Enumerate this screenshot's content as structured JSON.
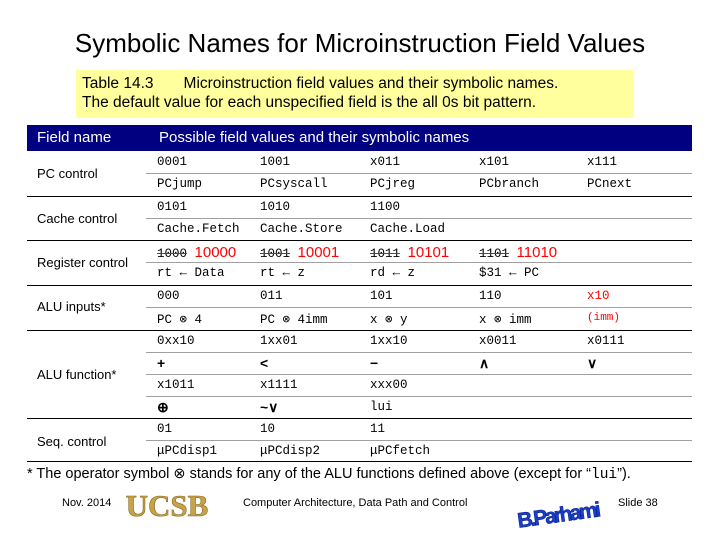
{
  "title": "Symbolic Names for Microinstruction Field Values",
  "caption": {
    "line1_a": "Table 14.3",
    "line1_b": "Microinstruction field values and their symbolic names.",
    "line2": "The default value for each unspecified field is the all 0s bit pattern."
  },
  "header": {
    "field_name": "Field name",
    "possible": "Possible field values and their symbolic names"
  },
  "rows": {
    "pc_control": {
      "label": "PC control",
      "r1": [
        "0001",
        "1001",
        "x011",
        "x101",
        "x111"
      ],
      "r2": [
        "PCjump",
        "PCsyscall",
        "PCjreg",
        "PCbranch",
        "PCnext"
      ]
    },
    "cache_control": {
      "label": "Cache control",
      "r1": [
        "0101",
        "1010",
        "1100"
      ],
      "r2": [
        "Cache.Fetch",
        "Cache.Store",
        "Cache.Load"
      ]
    },
    "register_control": {
      "label": "Register control",
      "r1_old": [
        "1000",
        "1001",
        "1011",
        "1101"
      ],
      "r1_new": [
        "10000",
        "10001",
        "10101",
        "11010"
      ],
      "r2": [
        "rt ← Data",
        "rt ← z",
        "rd ← z",
        "$31 ← PC"
      ]
    },
    "alu_inputs": {
      "label": "ALU inputs*",
      "r1": [
        "000",
        "011",
        "101",
        "110",
        "x10"
      ],
      "r2": [
        "PC ⊗ 4",
        "PC ⊗ 4imm",
        "x ⊗ y",
        "x ⊗ imm",
        "(imm)"
      ]
    },
    "alu_function": {
      "label": "ALU function*",
      "r1": [
        "0xx10",
        "1xx01",
        "1xx10",
        "x0011",
        "x0111"
      ],
      "r2": [
        "+",
        "<",
        "−",
        "∧",
        "∨"
      ],
      "r3": [
        "x1011",
        "x1111",
        "xxx00"
      ],
      "r4": [
        "⊕",
        "~∨",
        "lui"
      ]
    },
    "seq_control": {
      "label": "Seq. control",
      "r1": [
        "01",
        "10",
        "11"
      ],
      "r2": [
        "μPCdisp1",
        "μPCdisp2",
        "μPCfetch"
      ]
    }
  },
  "footnote": {
    "a": "* The operator symbol ⊗ stands for any of the ALU functions defined above (except for “",
    "code": "lui",
    "b": "”)."
  },
  "footer": {
    "date": "Nov. 2014",
    "logo_left": "UCSB",
    "course": "Computer Architecture, Data Path and Control",
    "logo_right": "B.Parhami",
    "slide": "Slide 38"
  },
  "colors": {
    "header_bg": "#000080",
    "caption_bg": "#ffff9d",
    "accent_red": "#ff0000",
    "ucsb_gold": "#c8a24a",
    "logo_blue": "#1a3fd0"
  }
}
